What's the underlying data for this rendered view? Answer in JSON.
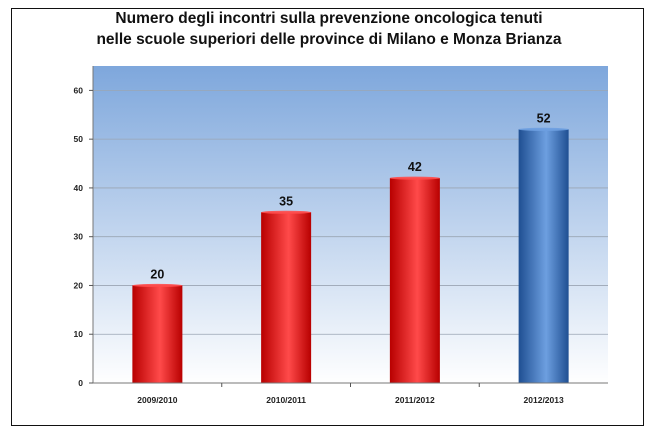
{
  "chart_data": {
    "type": "bar",
    "title_line1": "Numero degli incontri sulla prevenzione oncologica tenuti",
    "title_line2": "nelle scuole superiori delle province di Milano e Monza Brianza",
    "categories": [
      "2009/2010",
      "2010/2011",
      "2011/2012",
      "2012/2013"
    ],
    "values": [
      20,
      35,
      42,
      52
    ],
    "data_labels": [
      "20",
      "35",
      "42",
      "52"
    ],
    "y_ticks": [
      "0",
      "10",
      "20",
      "30",
      "40",
      "50",
      "60"
    ],
    "ylim": [
      0,
      65
    ],
    "grid": true,
    "bar_colors": [
      "red",
      "red",
      "red",
      "blue"
    ],
    "colors": {
      "red_light": "#ff4a4a",
      "red_dark": "#b80000",
      "blue_light": "#6d9fe0",
      "blue_dark": "#1f4f92",
      "plot_top": "#7ea7dc",
      "plot_bottom": "#ffffff"
    }
  }
}
